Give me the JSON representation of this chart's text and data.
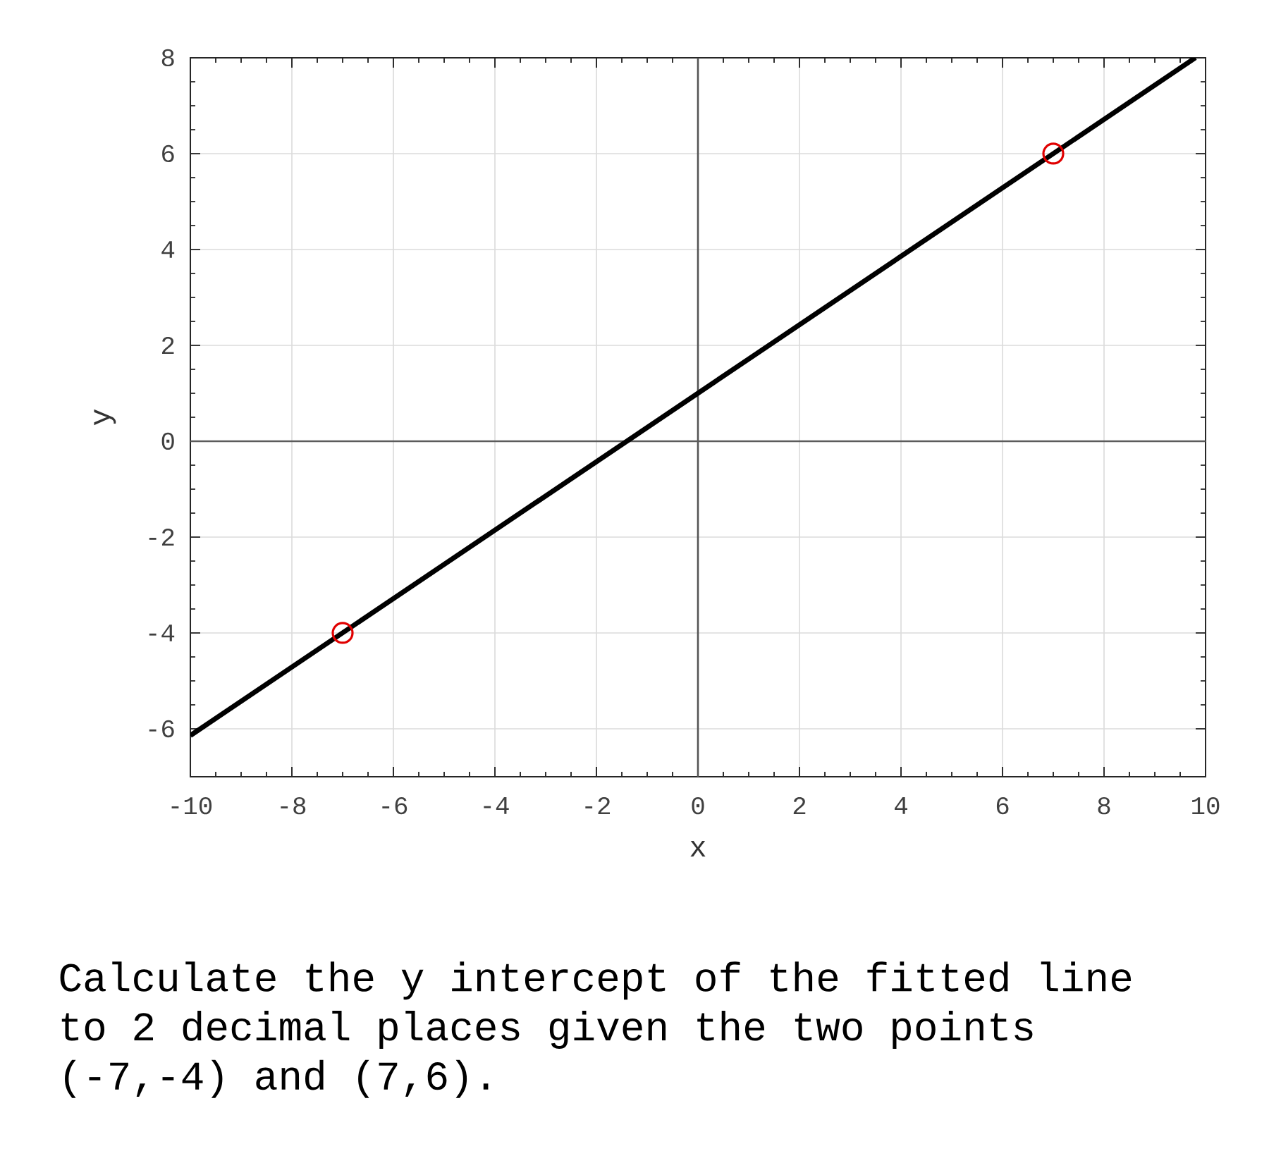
{
  "chart_data": {
    "type": "scatter",
    "xlabel": "x",
    "ylabel": "y",
    "xlim": [
      -10,
      10
    ],
    "ylim": [
      -7,
      8
    ],
    "xticks": [
      -10,
      -8,
      -6,
      -4,
      -2,
      0,
      2,
      4,
      6,
      8,
      10
    ],
    "yticks": [
      -6,
      -4,
      -2,
      0,
      2,
      4,
      6,
      8
    ],
    "grid": true,
    "series": [
      {
        "type": "line",
        "color": "#000000",
        "x": [
          -10,
          9.8
        ],
        "values": [
          -6.14,
          8
        ],
        "marker": "none"
      },
      {
        "type": "scatter",
        "color": "#e00000",
        "x": [
          -7,
          7
        ],
        "values": [
          -4,
          6
        ],
        "marker": "circle"
      }
    ],
    "ref_lines": [
      {
        "axis": "x",
        "value": 0,
        "color": "#555555"
      },
      {
        "axis": "y",
        "value": 0,
        "color": "#5c5c5c"
      }
    ],
    "annotations": [
      "Calculate the y intercept of the fitted line to 2 decimal places given the two points (-7,-4) and (7,6)."
    ]
  }
}
